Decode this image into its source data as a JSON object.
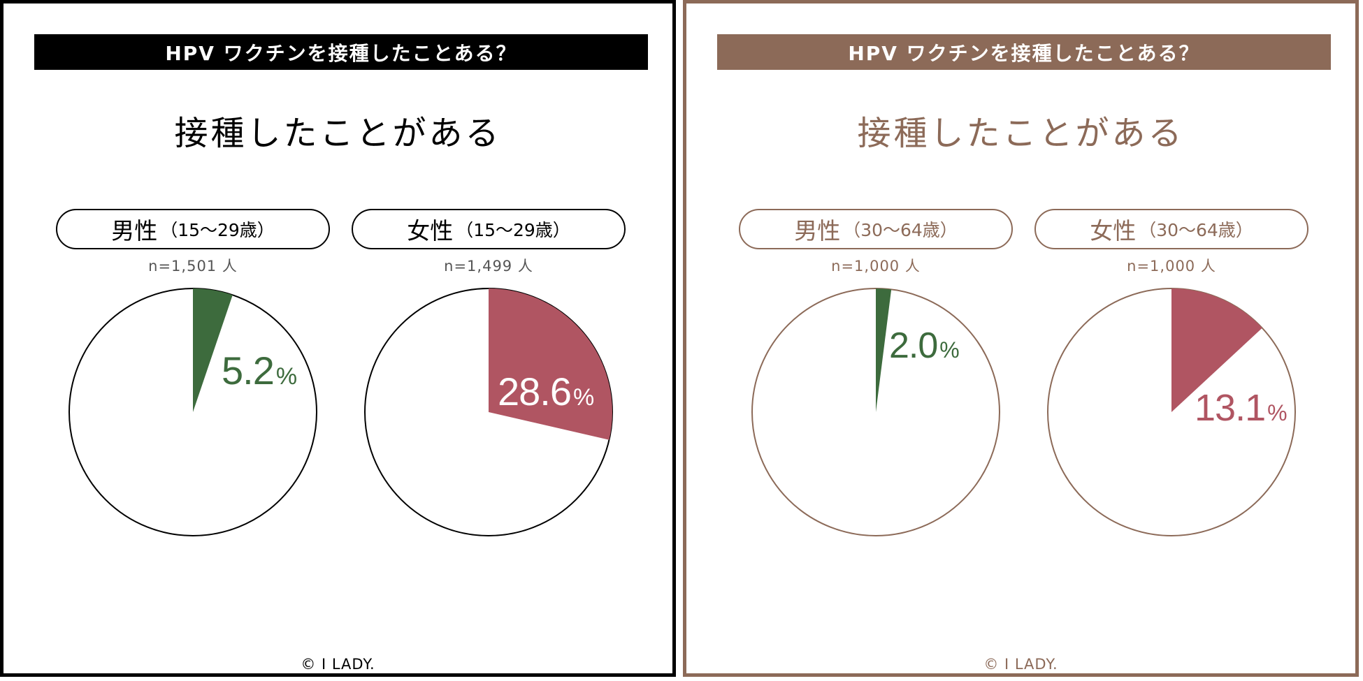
{
  "colors": {
    "dark": "#000000",
    "brown": "#8c6a58",
    "male": "#3d6b3d",
    "female": "#b05562",
    "white": "#ffffff"
  },
  "left": {
    "banner": "HPV ワクチンを接種したことある？",
    "subtitle": "接種したことがある",
    "male_gender": "男性",
    "male_age": "（15〜29歳）",
    "male_n": "n=1,501 人",
    "female_gender": "女性",
    "female_age": "（15〜29歳）",
    "female_n": "n=1,499 人",
    "footer": "© I LADY."
  },
  "right": {
    "banner": "HPV ワクチンを接種したことある？",
    "subtitle": "接種したことがある",
    "male_gender": "男性",
    "male_age": "（30〜64歳）",
    "male_n": "n=1,000 人",
    "female_gender": "女性",
    "female_age": "（30〜64歳）",
    "female_n": "n=1,000 人",
    "footer": "© I LADY."
  },
  "chart_data": [
    {
      "type": "pie",
      "title": "接種したことがある",
      "group": "男性（15〜29歳）",
      "n": "n=1,501 人",
      "value": 5.2,
      "label_number": "5.2",
      "label_unit": "%"
    },
    {
      "type": "pie",
      "title": "接種したことがある",
      "group": "女性（15〜29歳）",
      "n": "n=1,499 人",
      "value": 28.6,
      "label_number": "28.6",
      "label_unit": "%"
    },
    {
      "type": "pie",
      "title": "接種したことがある",
      "group": "男性（30〜64歳）",
      "n": "n=1,000 人",
      "value": 2.0,
      "label_number": "2.0",
      "label_unit": "%"
    },
    {
      "type": "pie",
      "title": "接種したことがある",
      "group": "女性（30〜64歳）",
      "n": "n=1,000 人",
      "value": 13.1,
      "label_number": "13.1",
      "label_unit": "%"
    }
  ]
}
